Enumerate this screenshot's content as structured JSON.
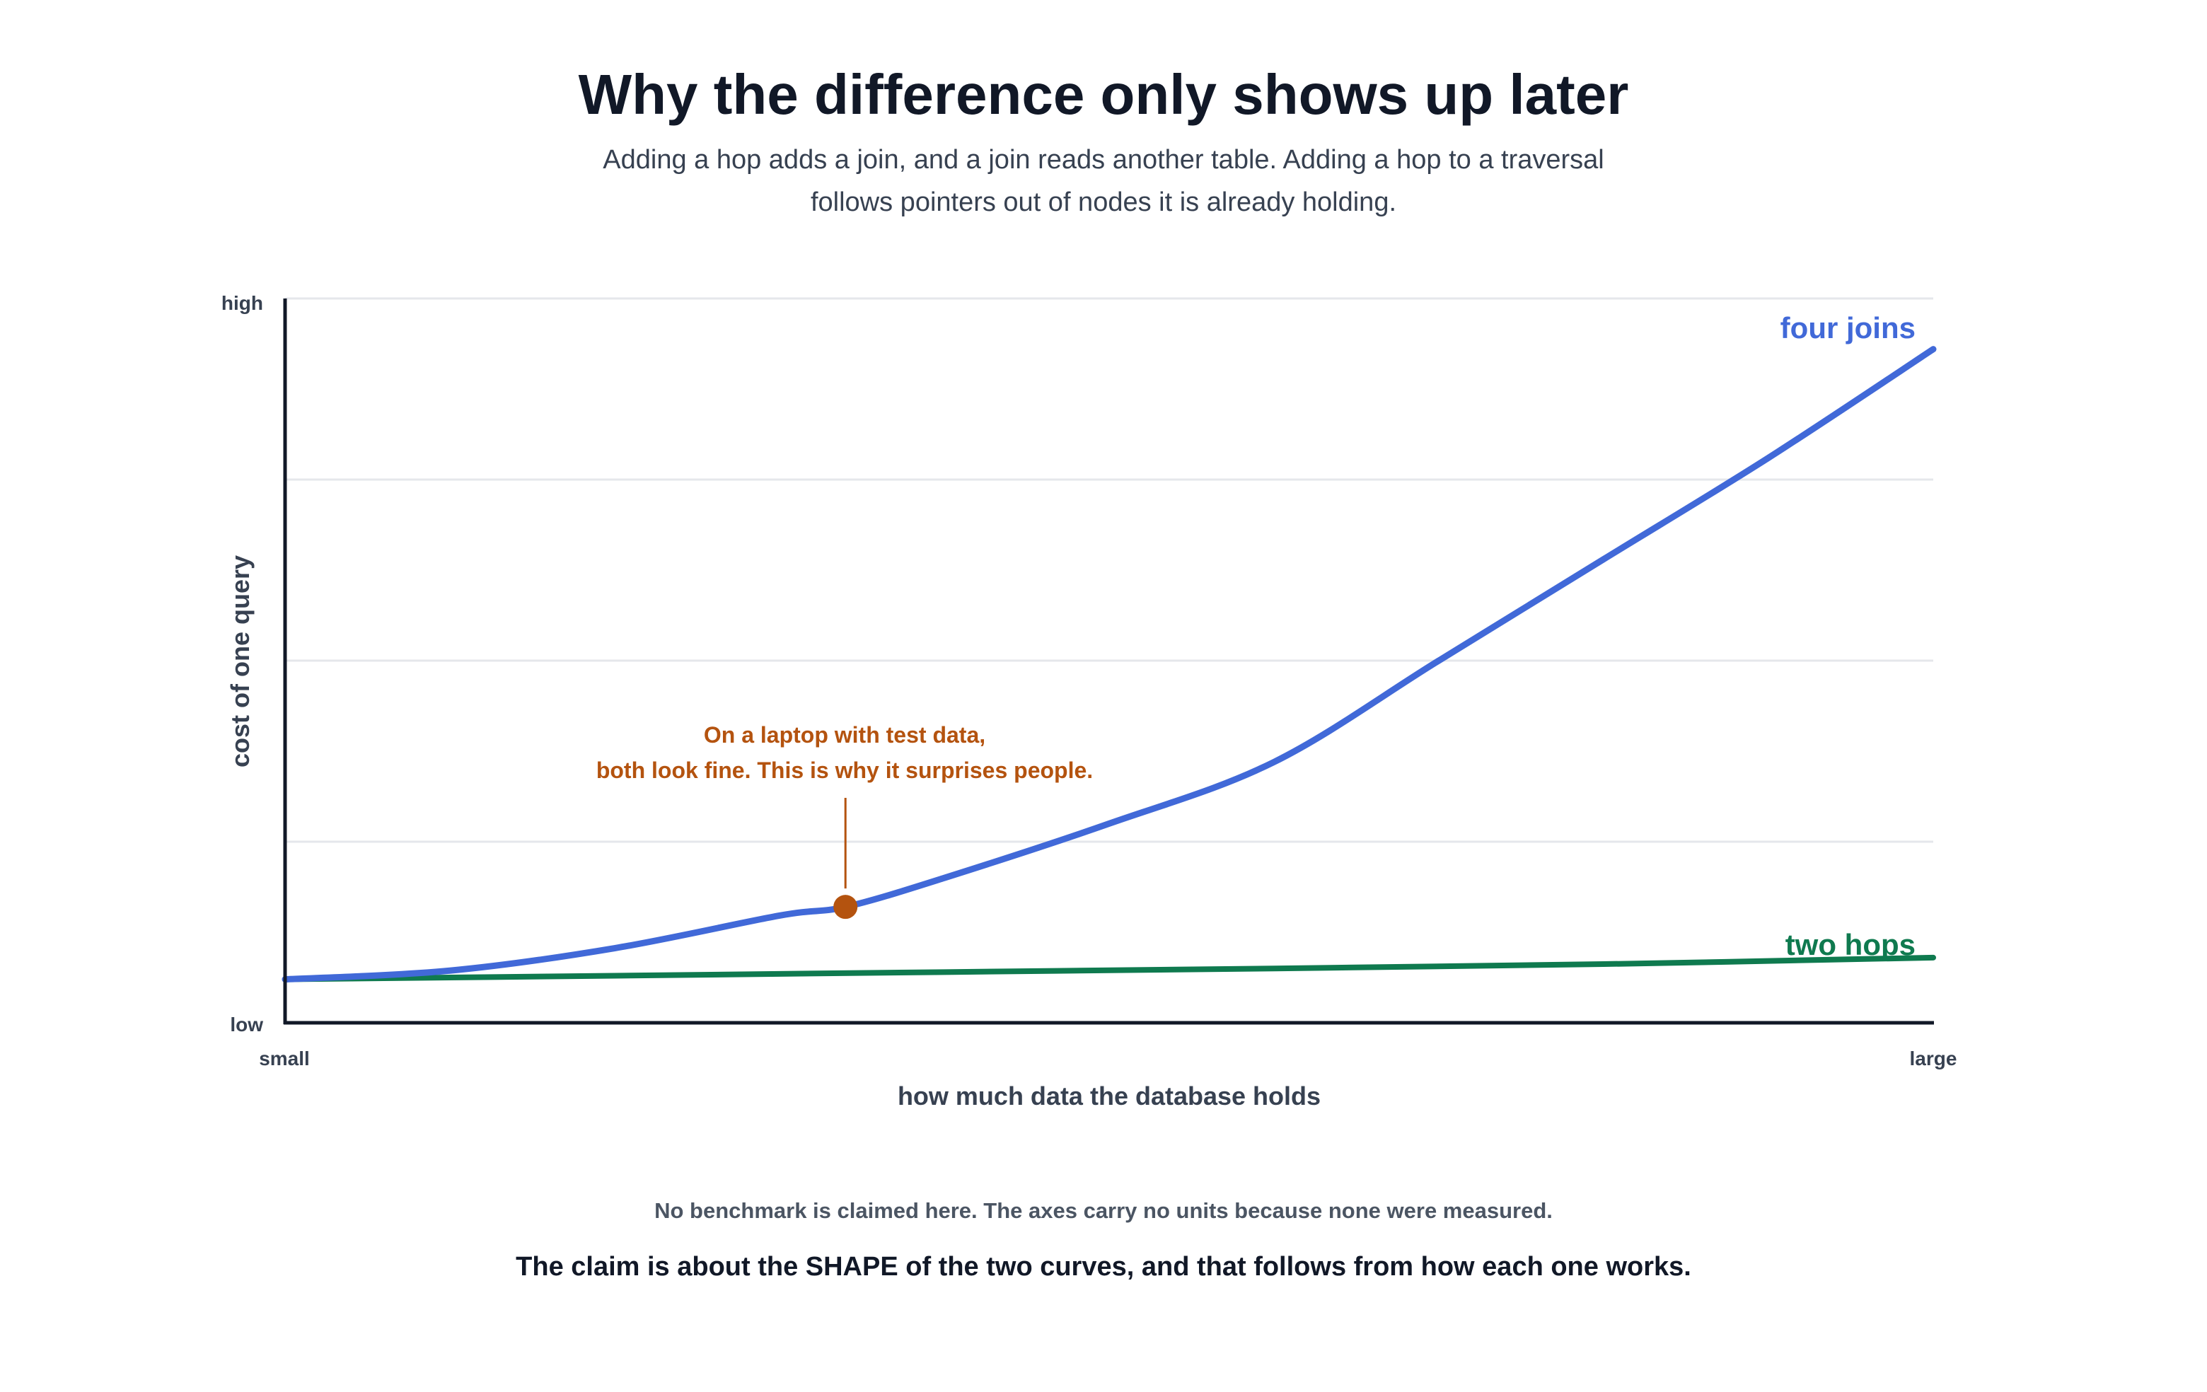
{
  "header": {
    "title": "Why the difference only shows up later",
    "subtitle_lines": [
      "Adding a hop adds a join, and a join reads another table. Adding a hop to a traversal",
      "follows pointers out of nodes it is already holding."
    ]
  },
  "chart_data": {
    "type": "line",
    "xlabel": "how much data the database holds",
    "ylabel": "cost of one query",
    "x_tick_labels": [
      "small",
      "large"
    ],
    "y_tick_labels": [
      "low",
      "high"
    ],
    "xlim": [
      0,
      1
    ],
    "ylim": [
      0,
      1
    ],
    "grid": true,
    "series": [
      {
        "name": "four joins",
        "color": "#4169d8",
        "x": [
          0,
          0.1,
          0.2,
          0.3,
          0.34,
          0.4,
          0.5,
          0.6,
          0.7,
          0.8,
          0.9,
          1.0
        ],
        "y": [
          0.06,
          0.072,
          0.103,
          0.148,
          0.16,
          0.2,
          0.275,
          0.36,
          0.5,
          0.64,
          0.78,
          0.93
        ]
      },
      {
        "name": "two hops",
        "color": "#0f7a4f",
        "x": [
          0,
          0.2,
          0.4,
          0.6,
          0.8,
          1.0
        ],
        "y": [
          0.06,
          0.065,
          0.07,
          0.075,
          0.081,
          0.09
        ]
      }
    ],
    "annotation": {
      "lines": [
        "On a laptop with test data,",
        "both look fine. This is why it surprises people."
      ],
      "x": 0.34,
      "y": 0.16,
      "color": "#b4530f"
    }
  },
  "footer": {
    "note": "No benchmark is claimed here. The axes carry no units because none were measured.",
    "claim": "The claim is about the SHAPE of the two curves, and that follows from how each one works."
  }
}
